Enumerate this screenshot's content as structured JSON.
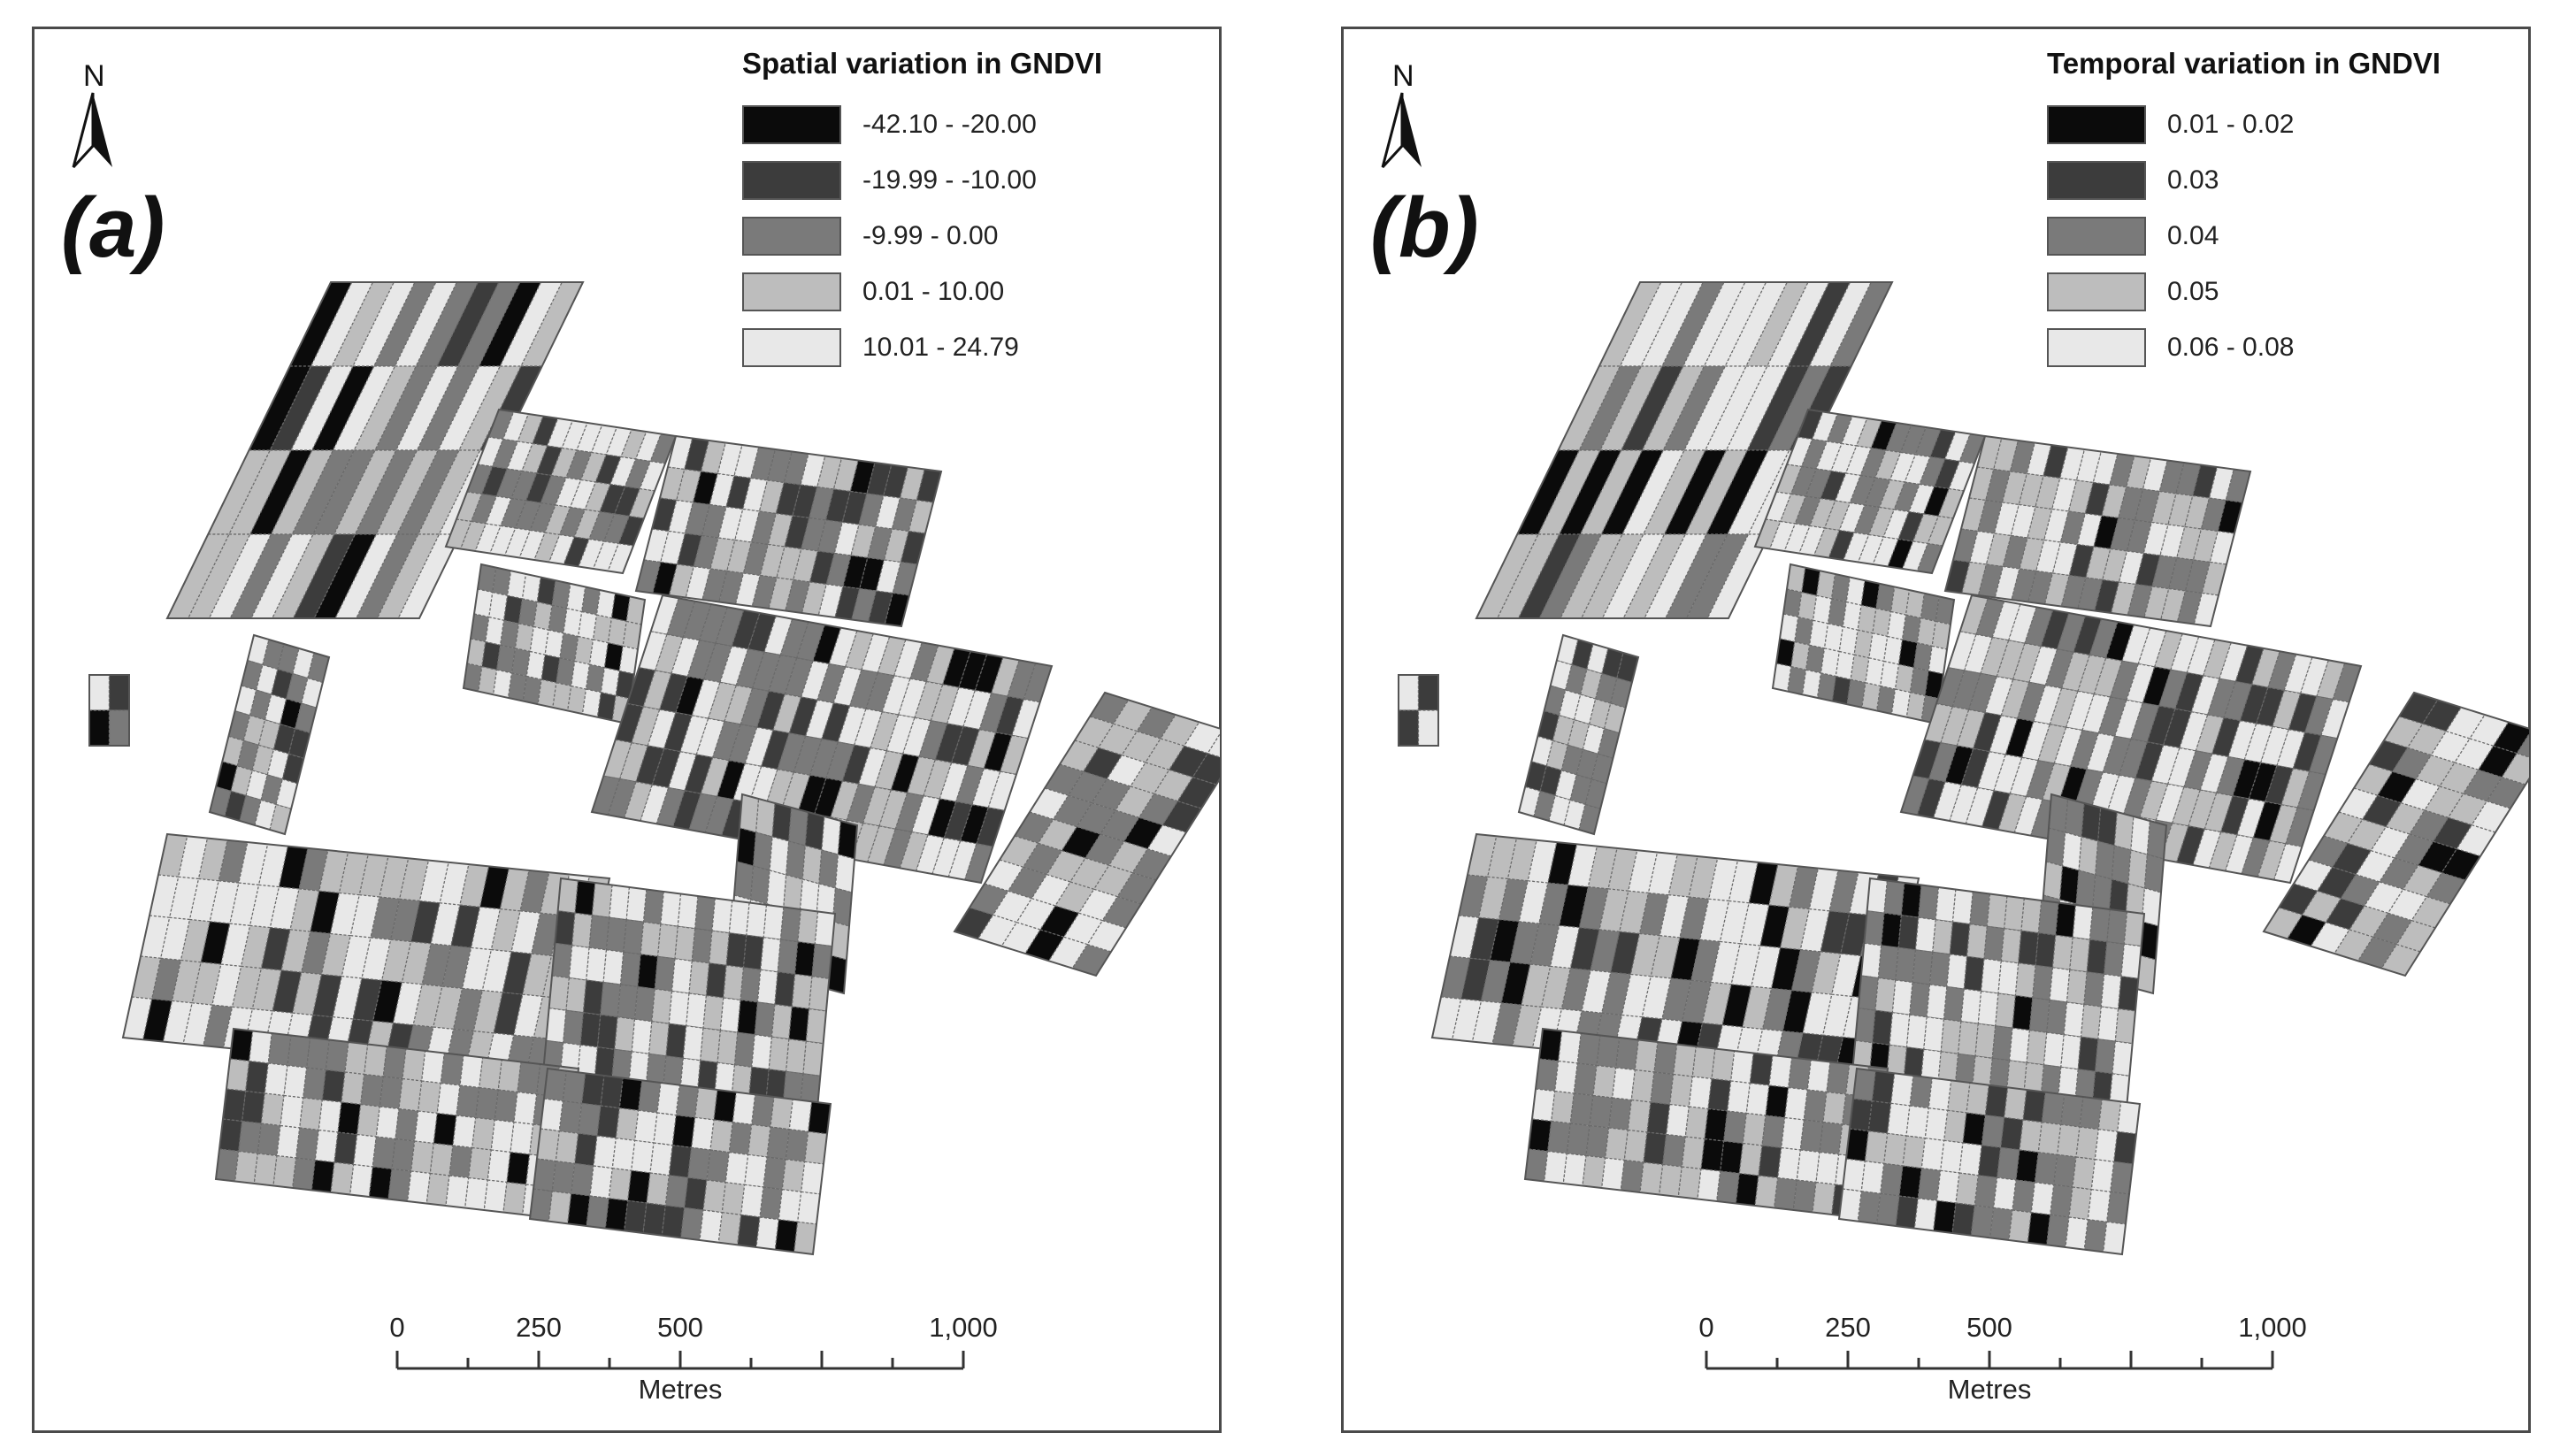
{
  "panels": [
    {
      "id": "a",
      "letter": "(a)",
      "north_label": "N",
      "legend": {
        "title": "Spatial variation in GNDVI",
        "items": [
          {
            "label": "-42.10 - -20.00",
            "color": "#0b0b0b"
          },
          {
            "label": "-19.99 - -10.00",
            "color": "#3c3c3c"
          },
          {
            "label": "-9.99 - 0.00",
            "color": "#7a7a7a"
          },
          {
            "label": "0.01 - 10.00",
            "color": "#bdbdbd"
          },
          {
            "label": "10.01 - 24.79",
            "color": "#e8e8e8"
          }
        ]
      }
    },
    {
      "id": "b",
      "letter": "(b)",
      "north_label": "N",
      "legend": {
        "title": "Temporal variation in GNDVI",
        "items": [
          {
            "label": "0.01 - 0.02",
            "color": "#0b0b0b"
          },
          {
            "label": "0.03",
            "color": "#3c3c3c"
          },
          {
            "label": "0.04",
            "color": "#7a7a7a"
          },
          {
            "label": "0.05",
            "color": "#bdbdbd"
          },
          {
            "label": "0.06 - 0.08",
            "color": "#e8e8e8"
          }
        ]
      }
    }
  ],
  "scale_bar": {
    "ticks": [
      {
        "label": "0",
        "value": 0
      },
      {
        "label": "250",
        "value": 250
      },
      {
        "label": "500",
        "value": 500
      },
      {
        "label": "1,000",
        "value": 1000
      }
    ],
    "max_value": 1000,
    "unit": "Metres"
  }
}
